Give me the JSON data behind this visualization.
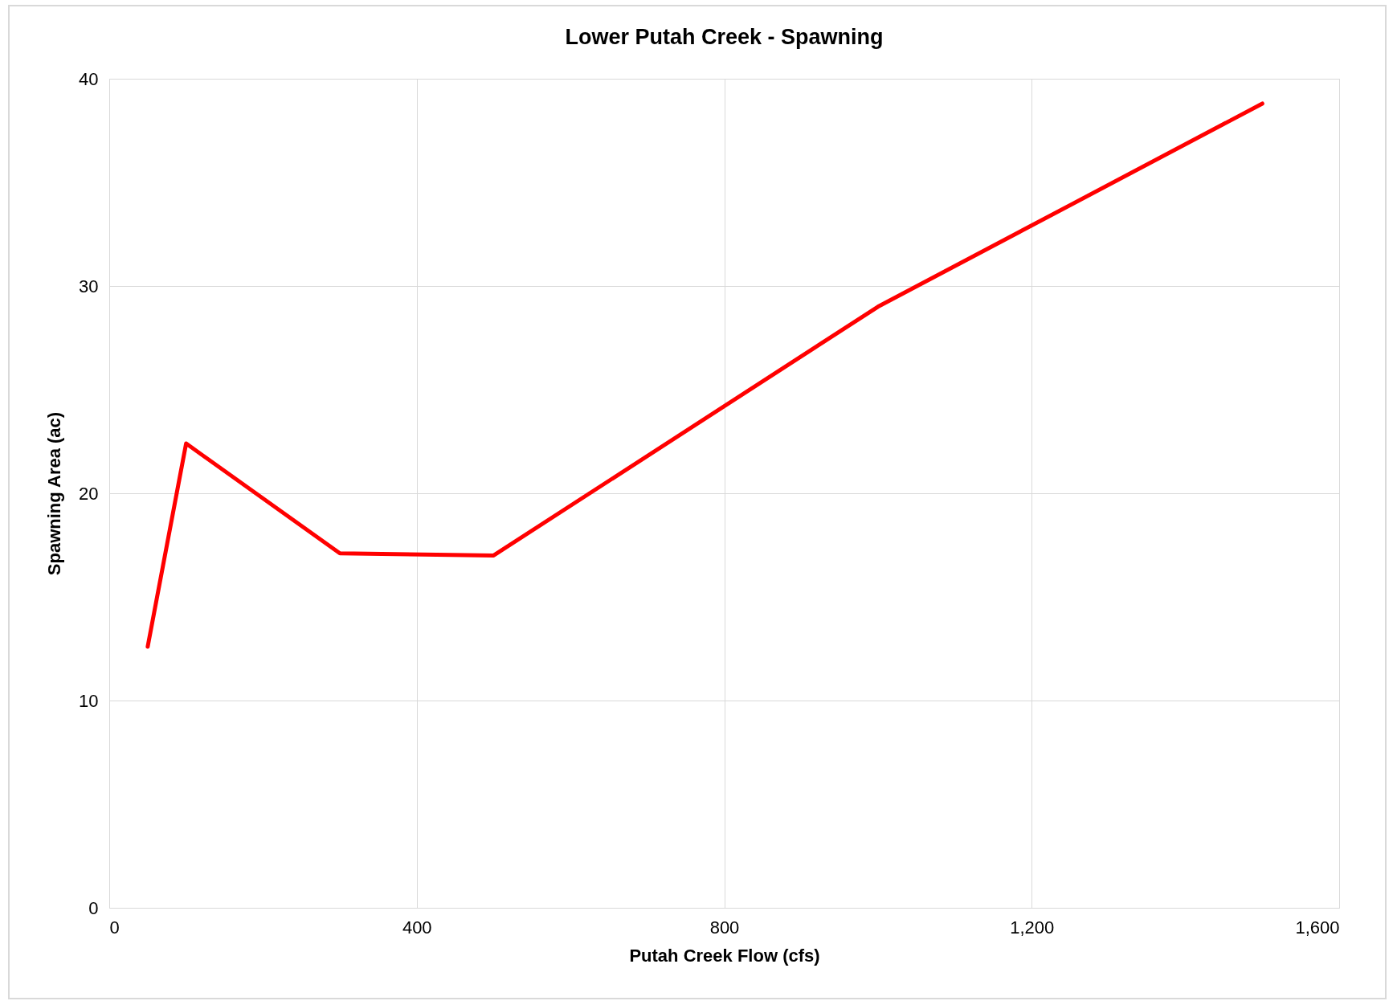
{
  "chart_data": {
    "type": "line",
    "title": "Lower Putah Creek - Spawning",
    "xlabel": "Putah Creek Flow (cfs)",
    "ylabel": "Spawning Area (ac)",
    "x": [
      50,
      100,
      300,
      500,
      1000,
      1500
    ],
    "series": [
      {
        "color": "#ff0000",
        "values": [
          12.6,
          22.4,
          17.1,
          17.0,
          29.0,
          38.8
        ]
      }
    ],
    "xlim": [
      0,
      1600
    ],
    "xticks": [
      0,
      {
        "value": 400,
        "label": "400"
      },
      {
        "value": 800,
        "label": "800"
      },
      {
        "value": 1200,
        "label": "1,200"
      },
      {
        "value": 1600,
        "label": "1,600"
      }
    ],
    "ylim": [
      0,
      40
    ],
    "yticks": [
      0,
      10,
      20,
      30,
      40
    ],
    "grid": true,
    "marker": "none",
    "line_style": "solid"
  }
}
